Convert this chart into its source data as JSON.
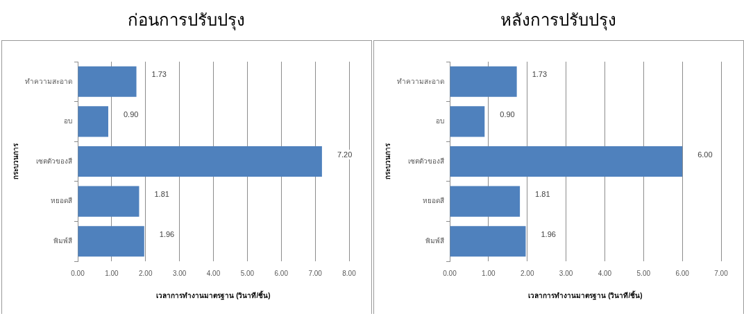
{
  "chart_data": [
    {
      "type": "bar",
      "title": "ก่อนการปรับปรุง",
      "orientation": "horizontal",
      "xlabel": "เวลาการทำงานมาตรฐาน (วินาที/ชิ้น)",
      "ylabel": "กระบวนการ",
      "categories": [
        "ทำความสะอาด",
        "อบ",
        "เซตตัวของสี",
        "หยอดสี",
        "พิมพ์สี"
      ],
      "values": [
        1.73,
        0.9,
        7.2,
        1.81,
        1.96
      ],
      "value_labels": [
        "1.73",
        "0.90",
        "7.20",
        "1.81",
        "1.96"
      ],
      "color": "#4f81bd",
      "xlim": [
        0,
        8
      ],
      "xticks": [
        {
          "value": 0,
          "label": "0.00"
        },
        {
          "value": 1,
          "label": "1.00"
        },
        {
          "value": 2,
          "label": "2.00"
        },
        {
          "value": 3,
          "label": "3.00"
        },
        {
          "value": 4,
          "label": "4.00"
        },
        {
          "value": 5,
          "label": "5.00"
        },
        {
          "value": 6,
          "label": "6.00"
        },
        {
          "value": 7,
          "label": "7.00"
        },
        {
          "value": 8,
          "label": "8.00"
        }
      ],
      "grid": "x"
    },
    {
      "type": "bar",
      "title": "หลังการปรับปรุง",
      "orientation": "horizontal",
      "xlabel": "เวลาการทำงานมาตรฐาน (วินาที/ชิ้น)",
      "ylabel": "กระบวนการ",
      "categories": [
        "ทำความสะอาด",
        "อบ",
        "เซตตัวของสี",
        "หยอดสี",
        "พิมพ์สี"
      ],
      "values": [
        1.73,
        0.9,
        6.0,
        1.81,
        1.96
      ],
      "value_labels": [
        "1.73",
        "0.90",
        "6.00",
        "1.81",
        "1.96"
      ],
      "color": "#4f81bd",
      "xlim": [
        0,
        7
      ],
      "xticks": [
        {
          "value": 0,
          "label": "0.00"
        },
        {
          "value": 1,
          "label": "1.00"
        },
        {
          "value": 2,
          "label": "2.00"
        },
        {
          "value": 3,
          "label": "3.00"
        },
        {
          "value": 4,
          "label": "4.00"
        },
        {
          "value": 5,
          "label": "5.00"
        },
        {
          "value": 6,
          "label": "6.00"
        },
        {
          "value": 7,
          "label": "7.00"
        }
      ],
      "grid": "x"
    }
  ]
}
